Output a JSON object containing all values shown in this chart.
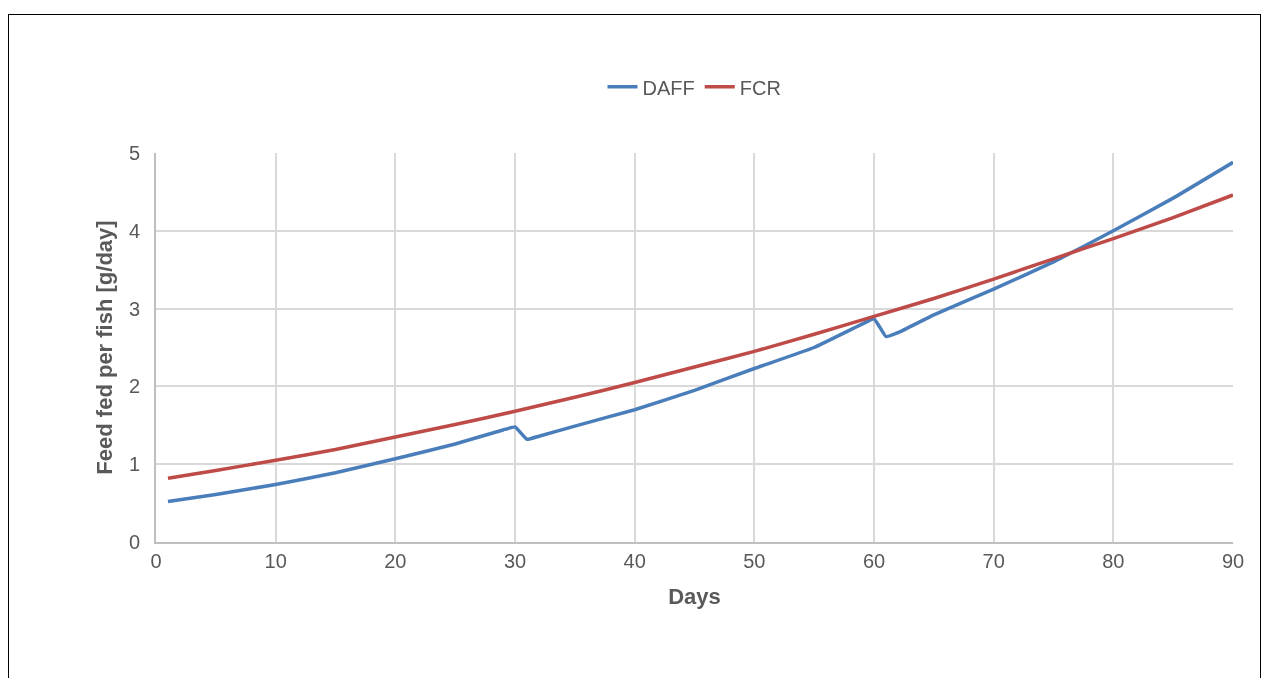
{
  "chart_data": {
    "type": "line",
    "xlabel": "Days",
    "ylabel": "Feed fed per fish [g/day]",
    "xlim": [
      0,
      90
    ],
    "xticks": [
      0,
      10,
      20,
      30,
      40,
      50,
      60,
      70,
      80,
      90
    ],
    "ylim": [
      0,
      5
    ],
    "yticks": [
      0,
      1,
      2,
      3,
      4,
      5
    ],
    "grid": true,
    "legend": "top",
    "marker": "none",
    "line_style": "solid",
    "series": [
      {
        "name": "DAFF",
        "color": "#4a7ebb",
        "x": [
          1,
          5,
          10,
          15,
          20,
          25,
          29,
          30,
          31,
          32,
          35,
          40,
          45,
          50,
          55,
          59,
          60,
          61,
          62,
          65,
          70,
          75,
          80,
          85,
          90
        ],
        "values": [
          0.52,
          0.61,
          0.74,
          0.89,
          1.07,
          1.26,
          1.44,
          1.48,
          1.32,
          1.36,
          1.49,
          1.7,
          1.95,
          2.23,
          2.5,
          2.8,
          2.87,
          2.64,
          2.69,
          2.92,
          3.25,
          3.6,
          4.0,
          4.42,
          4.88
        ]
      },
      {
        "name": "FCR",
        "color": "#be4b48",
        "x": [
          1,
          5,
          10,
          15,
          20,
          25,
          30,
          35,
          40,
          45,
          50,
          55,
          60,
          65,
          70,
          75,
          80,
          85,
          90
        ],
        "values": [
          0.82,
          0.92,
          1.05,
          1.19,
          1.35,
          1.51,
          1.68,
          1.86,
          2.05,
          2.25,
          2.45,
          2.67,
          2.9,
          3.13,
          3.38,
          3.64,
          3.9,
          4.17,
          4.46
        ]
      }
    ]
  }
}
